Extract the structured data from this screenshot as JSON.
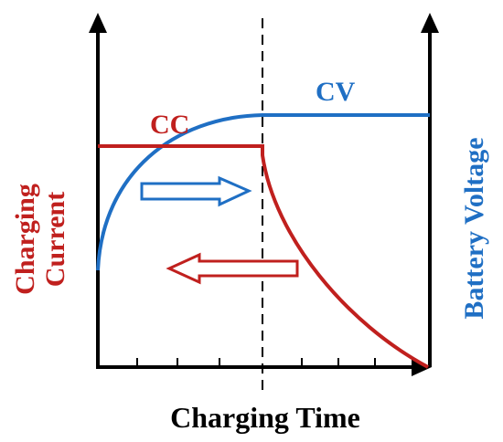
{
  "labels": {
    "cc": "CC",
    "cv": "CV",
    "current_line1": "Charging",
    "current_line2": "Current",
    "voltage": "Battery Voltage",
    "time": "Charging Time"
  }
}
